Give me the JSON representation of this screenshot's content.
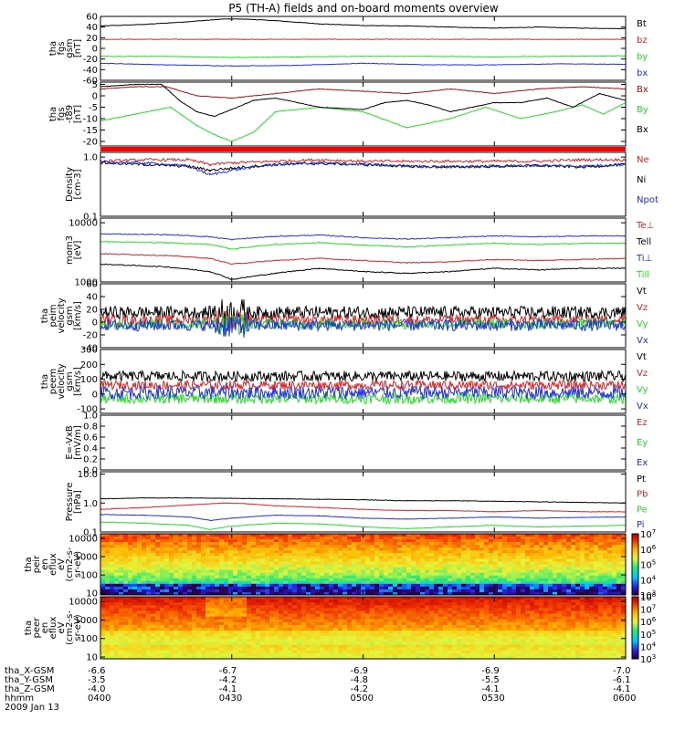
{
  "title": "P5 (TH-A) fields and on-board moments overview",
  "date": "2009 Jan 13",
  "colors": {
    "black": "#000000",
    "red": "#e02020",
    "green": "#22dd22",
    "blue": "#2030e0",
    "darkred": "#a01010",
    "bar": "#ff0000"
  },
  "x_axis": {
    "range": [
      0,
      120
    ],
    "ticks": [
      0,
      30,
      60,
      90,
      120
    ],
    "rows": [
      {
        "name": "tha_X-GSM",
        "values": [
          "-6.6",
          "-6.7",
          "-6.9",
          "-6.9",
          "-7.0"
        ]
      },
      {
        "name": "tha_Y-GSM",
        "values": [
          "-3.5",
          "-4.2",
          "-4.8",
          "-5.5",
          "-6.1"
        ]
      },
      {
        "name": "tha_Z-GSM",
        "values": [
          "-4.0",
          "-4.1",
          "-4.2",
          "-4.1",
          "-4.1"
        ]
      },
      {
        "name": "hhmm",
        "values": [
          "0400",
          "0430",
          "0500",
          "0530",
          "0600"
        ]
      }
    ]
  },
  "chart_data": [
    {
      "type": "line",
      "ylabel": [
        "tha",
        "fgs",
        "gsm",
        "[nT]"
      ],
      "ylim": [
        -60,
        60
      ],
      "yticks": [
        "60",
        "40",
        "20",
        "0",
        "-20",
        "-40",
        "-60"
      ],
      "ytick_values": [
        60,
        40,
        20,
        0,
        -20,
        -40,
        -60
      ],
      "series": [
        {
          "name": "Bt",
          "color": "black",
          "x": [
            0,
            10,
            20,
            28,
            33,
            40,
            50,
            60,
            70,
            80,
            90,
            100,
            110,
            120
          ],
          "y": [
            42,
            45,
            50,
            55,
            55,
            52,
            46,
            43,
            42,
            40,
            38,
            40,
            38,
            37
          ]
        },
        {
          "name": "bz",
          "color": "red",
          "x": [
            0,
            30,
            60,
            90,
            120
          ],
          "y": [
            17,
            17,
            17,
            17,
            17
          ]
        },
        {
          "name": "by",
          "color": "green",
          "x": [
            0,
            15,
            30,
            45,
            60,
            75,
            90,
            105,
            120
          ],
          "y": [
            -15,
            -15,
            -17,
            -16,
            -15,
            -15,
            -16,
            -15,
            -14
          ]
        },
        {
          "name": "bx",
          "color": "blue",
          "x": [
            0,
            15,
            30,
            45,
            60,
            75,
            90,
            105,
            120
          ],
          "y": [
            -28,
            -31,
            -33,
            -32,
            -28,
            -31,
            -31,
            -29,
            -30
          ]
        }
      ]
    },
    {
      "type": "line",
      "ylabel": [
        "tha",
        "fgs",
        "-t89",
        "[nT]"
      ],
      "ylim": [
        -22,
        6
      ],
      "yticks": [
        "5",
        "0",
        "-5",
        "-10",
        "-15",
        "-20"
      ],
      "ytick_values": [
        5,
        0,
        -5,
        -10,
        -15,
        -20
      ],
      "series": [
        {
          "name": "Bx",
          "color": "darkred",
          "x": [
            0,
            8,
            15,
            22,
            30,
            40,
            50,
            60,
            70,
            80,
            90,
            100,
            110,
            120
          ],
          "y": [
            3,
            4,
            4,
            0,
            -1,
            1,
            3,
            2,
            1,
            3,
            1,
            3,
            4,
            3
          ]
        },
        {
          "name": "By",
          "color": "green",
          "x": [
            0,
            8,
            16,
            22,
            26,
            30,
            35,
            40,
            50,
            60,
            70,
            80,
            88,
            96,
            104,
            110,
            115,
            120
          ],
          "y": [
            -11,
            -8,
            -5,
            -13,
            -17,
            -20,
            -16,
            -7,
            -5,
            -7,
            -14,
            -10,
            -5,
            -10,
            -7,
            -4,
            -8,
            -3
          ]
        },
        {
          "name": "Bx",
          "color": "black",
          "x": [
            0,
            8,
            14,
            18,
            22,
            26,
            30,
            35,
            40,
            45,
            50,
            60,
            65,
            70,
            75,
            80,
            85,
            90,
            96,
            102,
            108,
            114,
            120
          ],
          "y": [
            4,
            5,
            5,
            -2,
            -7,
            -9,
            -6,
            -2,
            -1,
            -3,
            -5,
            -6,
            -3,
            -2,
            -4,
            -7,
            -5,
            -3,
            -3,
            -1,
            -5,
            1,
            -2
          ]
        }
      ]
    },
    {
      "type": "line",
      "ylabel": [
        "Density",
        "[cm-3]"
      ],
      "log": true,
      "ylim": [
        0.1,
        1.2
      ],
      "yticks": [
        "1.0",
        "0.1"
      ],
      "ytick_values": [
        1.0,
        0.1
      ],
      "series": [
        {
          "name": "Ne",
          "color": "red",
          "x": [
            0,
            10,
            20,
            25,
            30,
            40,
            50,
            60,
            70,
            80,
            90,
            100,
            110,
            120
          ],
          "y": [
            0.85,
            0.9,
            0.9,
            0.75,
            0.8,
            0.85,
            0.9,
            0.85,
            0.85,
            0.85,
            0.85,
            0.85,
            0.9,
            0.9
          ]
        },
        {
          "name": "Ni",
          "color": "black",
          "x": [
            0,
            10,
            20,
            25,
            30,
            40,
            50,
            60,
            70,
            80,
            90,
            100,
            110,
            120
          ],
          "y": [
            0.8,
            0.75,
            0.7,
            0.6,
            0.65,
            0.75,
            0.78,
            0.75,
            0.7,
            0.68,
            0.7,
            0.72,
            0.68,
            0.75
          ]
        },
        {
          "name": "Npot",
          "color": "blue",
          "x": [
            0,
            10,
            20,
            25,
            30,
            40,
            50,
            60,
            70,
            80,
            90,
            100,
            110,
            120
          ],
          "y": [
            0.82,
            0.8,
            0.7,
            0.5,
            0.6,
            0.75,
            0.8,
            0.75,
            0.7,
            0.68,
            0.7,
            0.72,
            0.7,
            0.75
          ]
        }
      ]
    },
    {
      "type": "line",
      "ylabel": [
        "mom3",
        "[eV]"
      ],
      "log": true,
      "ylim": [
        1000,
        12000
      ],
      "yticks": [
        "10000",
        "1000"
      ],
      "ytick_values": [
        10000,
        1000
      ],
      "series": [
        {
          "name": "Te⊥",
          "color": "red",
          "x": [
            0,
            15,
            25,
            30,
            40,
            50,
            60,
            70,
            80,
            90,
            100,
            110,
            120
          ],
          "y": [
            3000,
            2800,
            2500,
            2000,
            2300,
            2500,
            2300,
            2100,
            2200,
            2400,
            2300,
            2400,
            2500
          ]
        },
        {
          "name": "Tell",
          "color": "black",
          "x": [
            0,
            15,
            25,
            30,
            40,
            50,
            60,
            70,
            80,
            90,
            100,
            110,
            120
          ],
          "y": [
            2000,
            1800,
            1500,
            1100,
            1400,
            1700,
            1500,
            1400,
            1500,
            1700,
            1600,
            1700,
            1700
          ]
        },
        {
          "name": "Ti⊥",
          "color": "blue",
          "x": [
            0,
            15,
            25,
            30,
            40,
            50,
            60,
            70,
            80,
            90,
            100,
            110,
            120
          ],
          "y": [
            6500,
            6300,
            5800,
            5200,
            5900,
            6200,
            5600,
            5300,
            5600,
            6000,
            5800,
            6000,
            6000
          ]
        },
        {
          "name": "Till",
          "color": "green",
          "x": [
            0,
            15,
            25,
            30,
            40,
            50,
            60,
            70,
            80,
            90,
            100,
            110,
            120
          ],
          "y": [
            4800,
            4600,
            4300,
            3600,
            4300,
            4600,
            4200,
            3900,
            4200,
            4500,
            4300,
            4500,
            4500
          ]
        }
      ]
    },
    {
      "type": "line",
      "ylabel": [
        "tha",
        "peim",
        "velocity",
        "gsm",
        "[km/s]"
      ],
      "ylim": [
        -40,
        60
      ],
      "yticks": [
        "60",
        "40",
        "20",
        "0",
        "-20",
        "-40"
      ],
      "ytick_values": [
        60,
        40,
        20,
        0,
        -20,
        -40
      ],
      "series": [
        {
          "name": "Vt",
          "color": "black",
          "base": 15,
          "amp": 10
        },
        {
          "name": "Vz",
          "color": "red",
          "base": 3,
          "amp": 8
        },
        {
          "name": "Vy",
          "color": "green",
          "base": -3,
          "amp": 8
        },
        {
          "name": "Vx",
          "color": "blue",
          "base": -5,
          "amp": 9
        }
      ]
    },
    {
      "type": "line",
      "ylabel": [
        "tha",
        "peem",
        "velocity",
        "gsm",
        "[km/s]"
      ],
      "ylim": [
        -130,
        300
      ],
      "yticks": [
        "300",
        "200",
        "100",
        "0",
        "-100"
      ],
      "ytick_values": [
        300,
        200,
        100,
        0,
        -100
      ],
      "series": [
        {
          "name": "Vt",
          "color": "black",
          "base": 120,
          "amp": 35
        },
        {
          "name": "Vz",
          "color": "red",
          "base": 60,
          "amp": 30
        },
        {
          "name": "Vy",
          "color": "green",
          "base": -30,
          "amp": 35
        },
        {
          "name": "Vx",
          "color": "blue",
          "base": 10,
          "amp": 45
        }
      ]
    },
    {
      "type": "line",
      "ylabel": [
        "E=-VxB",
        "[mV/m]"
      ],
      "ylim": [
        0,
        1
      ],
      "yticks": [
        "1.0",
        "0.8",
        "0.6",
        "0.4",
        "0.2",
        "0.0"
      ],
      "ytick_values": [
        1.0,
        0.8,
        0.6,
        0.4,
        0.2,
        0.0
      ],
      "series": [
        {
          "name": "Ez",
          "color": "red"
        },
        {
          "name": "Ey",
          "color": "green"
        },
        {
          "name": "Ex",
          "color": "blue"
        }
      ]
    },
    {
      "type": "line",
      "ylabel": [
        "Pressure",
        "[nPa]"
      ],
      "log": true,
      "ylim": [
        0.1,
        12
      ],
      "yticks": [
        "10.0",
        "1.0",
        "0.1"
      ],
      "ytick_values": [
        10,
        1,
        0.1
      ],
      "series": [
        {
          "name": "Pt",
          "color": "black",
          "x": [
            0,
            10,
            20,
            30,
            40,
            50,
            60,
            70,
            80,
            90,
            100,
            110,
            120
          ],
          "y": [
            1.4,
            1.5,
            1.5,
            1.45,
            1.4,
            1.35,
            1.3,
            1.2,
            1.2,
            1.15,
            1.1,
            1.05,
            1.0
          ]
        },
        {
          "name": "Pb",
          "color": "red",
          "x": [
            0,
            10,
            20,
            28,
            33,
            40,
            50,
            60,
            70,
            80,
            90,
            100,
            110,
            120
          ],
          "y": [
            0.6,
            0.7,
            0.85,
            1.0,
            0.95,
            0.8,
            0.7,
            0.6,
            0.55,
            0.55,
            0.5,
            0.55,
            0.5,
            0.5
          ]
        },
        {
          "name": "Pe",
          "color": "green",
          "x": [
            0,
            10,
            20,
            25,
            30,
            40,
            50,
            60,
            70,
            80,
            90,
            100,
            110,
            120
          ],
          "y": [
            0.22,
            0.2,
            0.17,
            0.12,
            0.16,
            0.2,
            0.19,
            0.15,
            0.13,
            0.15,
            0.17,
            0.15,
            0.16,
            0.17
          ]
        },
        {
          "name": "Pi",
          "color": "blue",
          "x": [
            0,
            10,
            20,
            25,
            30,
            40,
            50,
            60,
            70,
            80,
            90,
            100,
            110,
            120
          ],
          "y": [
            0.4,
            0.38,
            0.33,
            0.25,
            0.3,
            0.38,
            0.36,
            0.3,
            0.28,
            0.3,
            0.33,
            0.3,
            0.32,
            0.33
          ]
        }
      ]
    },
    {
      "type": "heatmap",
      "ylabel": [
        "tha",
        "peir",
        "en",
        "eflux",
        "eV",
        "(cm2-s-",
        "sr-eV)"
      ],
      "yscale": "log",
      "ylim": [
        8,
        18000
      ],
      "yticks": [
        "10000",
        "1000",
        "100",
        "10"
      ],
      "ytick_values": [
        10000,
        1000,
        100,
        10
      ],
      "colorbar_ticks": [
        "10^7",
        "10^6",
        "10^5",
        "10^4",
        "10^3"
      ],
      "colorbar_range": [
        3,
        7
      ]
    },
    {
      "type": "heatmap",
      "ylabel": [
        "tha",
        "peer",
        "en",
        "eflux",
        "eV",
        "(cm2-s-",
        "sr-eV)"
      ],
      "yscale": "log",
      "ylim": [
        8,
        18000
      ],
      "yticks": [
        "10000",
        "1000",
        "100",
        "10"
      ],
      "ytick_values": [
        10000,
        1000,
        100,
        10
      ],
      "colorbar_ticks": [
        "10^8",
        "10^7",
        "10^6",
        "10^5",
        "10^4",
        "10^3"
      ],
      "colorbar_range": [
        3,
        8
      ]
    }
  ]
}
